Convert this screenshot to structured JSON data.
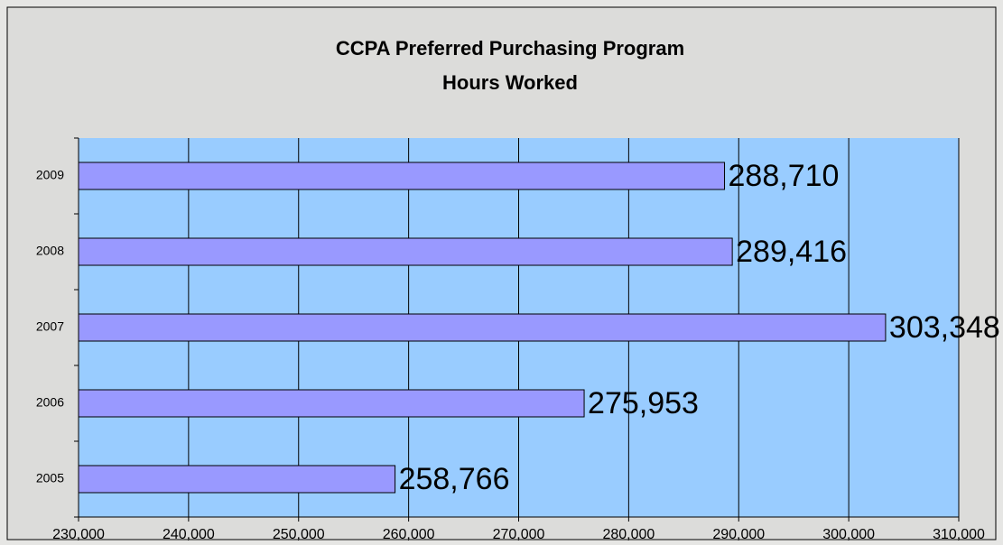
{
  "chart_data": {
    "type": "bar",
    "orientation": "horizontal",
    "title": "CCPA Preferred Purchasing Program",
    "subtitle": "Hours Worked",
    "categories": [
      "2005",
      "2006",
      "2007",
      "2008",
      "2009"
    ],
    "values": [
      258766,
      275953,
      303348,
      289416,
      288710
    ],
    "value_labels": [
      "258,766",
      "275,953",
      "303,348",
      "289,416",
      "288,710"
    ],
    "color": "#9999ff",
    "xlim": [
      230000,
      310000
    ],
    "xticks": [
      {
        "value": 230000,
        "label": "230,000"
      },
      {
        "value": 240000,
        "label": "240,000"
      },
      {
        "value": 250000,
        "label": "250,000"
      },
      {
        "value": 260000,
        "label": "260,000"
      },
      {
        "value": 270000,
        "label": "270,000"
      },
      {
        "value": 280000,
        "label": "280,000"
      },
      {
        "value": 290000,
        "label": "290,000"
      },
      {
        "value": 300000,
        "label": "300,000"
      },
      {
        "value": 310000,
        "label": "310,000"
      }
    ],
    "grid": true
  }
}
